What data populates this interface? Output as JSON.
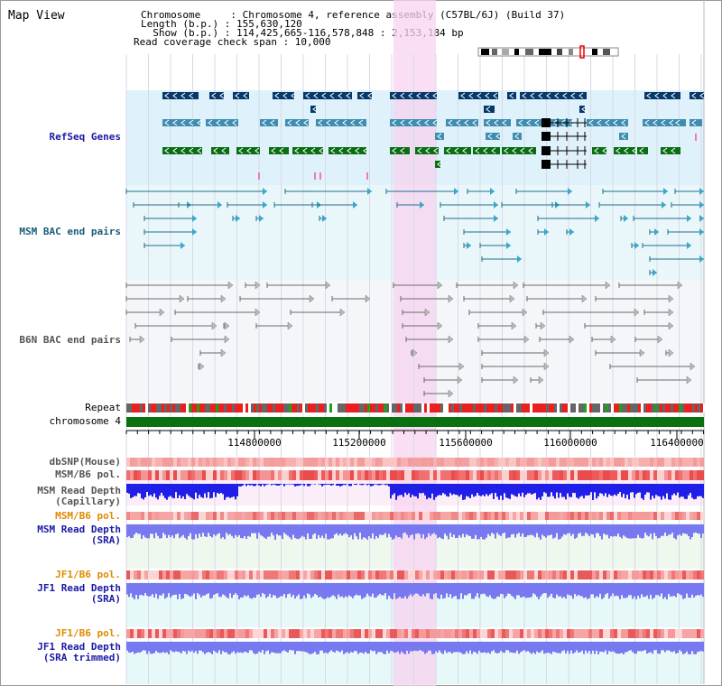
{
  "view": {
    "title": "Map View",
    "info_lines": [
      "Chromosome     : Chromosome 4, reference assembly (C57BL/6J) (Build 37)",
      "Length (b.p.) : 155,630,120",
      "  Show (b.p.) : 114,425,665-116,578,848 : 2,153,184 bp",
      "Read coverage check span : 10,000"
    ]
  },
  "tracks": {
    "refseq": "RefSeq Genes",
    "msm_bac": "MSM BAC end pairs",
    "b6n_bac": "B6N BAC end pairs",
    "repeat": "Repeat",
    "chromosome": "chromosome 4",
    "dbsnp": "dbSNP(Mouse)",
    "msm_b6_pol_1": "MSM/B6 pol.",
    "msm_depth_cap": "MSM Read Depth\n(Capillary)",
    "msm_b6_pol_2": "MSM/B6 pol.",
    "msm_depth_sra": "MSM Read Depth\n(SRA)",
    "jf1_b6_pol_1": "JF1/B6 pol.",
    "jf1_depth_sra": "JF1 Read Depth\n(SRA)",
    "jf1_b6_pol_2": "JF1/B6 pol.",
    "jf1_depth_trim": "JF1 Read Depth\n(SRA trimmed)"
  },
  "axis": {
    "ticks": [
      "114800000",
      "115200000",
      "115600000",
      "116000000",
      "116400000"
    ]
  },
  "colors": {
    "refseq_bg": "#dff2fb",
    "msm_bg": "#eaf7fa",
    "b6n_bg": "#f4f6fa",
    "highlight": "#f7d3f0",
    "gene_dark": "#06386a",
    "gene_mid": "#3f8db0",
    "gene_green": "#0a6e12",
    "msm_pair": "#1f6e8c",
    "b6n_pair": "#6a6a6a",
    "label_blue": "#1a1aa6",
    "label_orange": "#e08a00",
    "label_teal": "#1a5c7a",
    "depth_blue": "#1f1fe8",
    "depth_light": "#7878f0"
  }
}
